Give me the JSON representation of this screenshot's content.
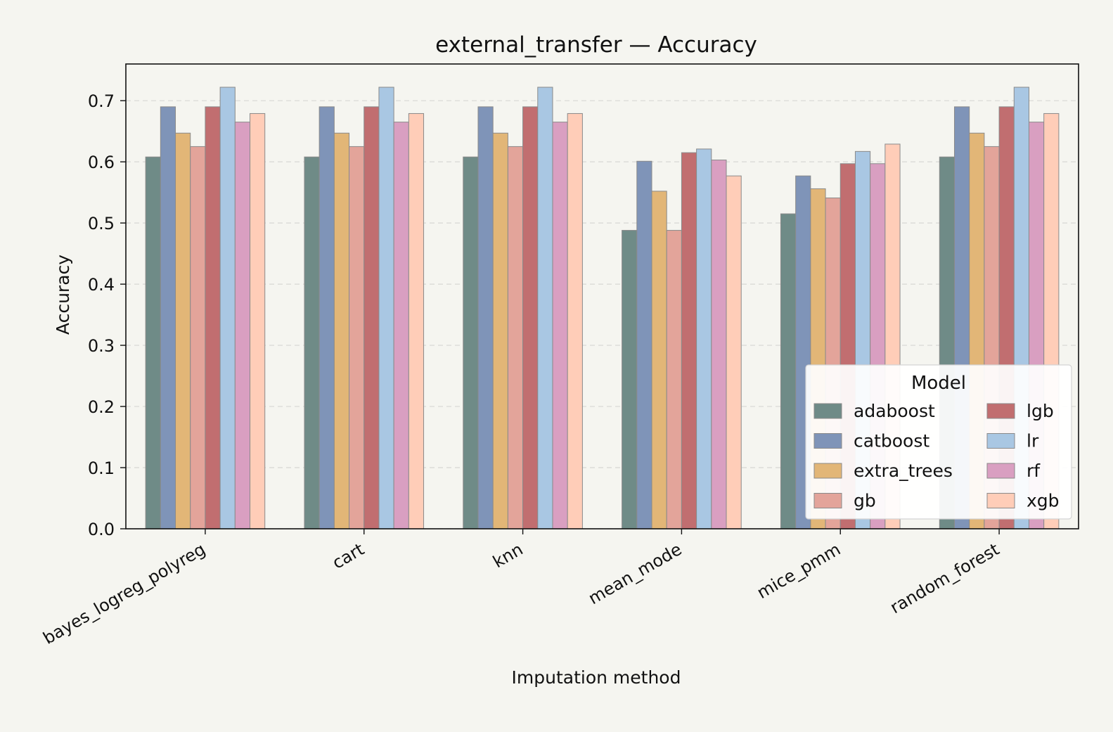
{
  "chart_data": {
    "type": "bar",
    "title": "external_transfer — Accuracy",
    "xlabel": "Imputation method",
    "ylabel": "Accuracy",
    "ylim": [
      0,
      0.76
    ],
    "yticks": [
      0.0,
      0.1,
      0.2,
      0.3,
      0.4,
      0.5,
      0.6,
      0.7
    ],
    "grid": "horizontal dashed",
    "legend": {
      "title": "Model",
      "placement": "lower-right",
      "columns": 2
    },
    "categories": [
      "bayes_logreg_polyreg",
      "cart",
      "knn",
      "mean_mode",
      "mice_pmm",
      "random_forest"
    ],
    "series": [
      {
        "name": "adaboost",
        "color": "#6f8b87",
        "values": [
          0.608,
          0.608,
          0.608,
          0.488,
          0.515,
          0.608
        ]
      },
      {
        "name": "catboost",
        "color": "#7f94b8",
        "values": [
          0.69,
          0.69,
          0.69,
          0.601,
          0.577,
          0.69
        ]
      },
      {
        "name": "extra_trees",
        "color": "#e2b677",
        "values": [
          0.647,
          0.647,
          0.647,
          0.552,
          0.556,
          0.647
        ]
      },
      {
        "name": "gb",
        "color": "#e3a49a",
        "values": [
          0.625,
          0.625,
          0.625,
          0.488,
          0.541,
          0.625
        ]
      },
      {
        "name": "lgb",
        "color": "#c16e70",
        "values": [
          0.69,
          0.69,
          0.69,
          0.615,
          0.597,
          0.69
        ]
      },
      {
        "name": "lr",
        "color": "#a9c7e3",
        "values": [
          0.722,
          0.722,
          0.722,
          0.621,
          0.617,
          0.722
        ]
      },
      {
        "name": "rf",
        "color": "#d99fc1",
        "values": [
          0.665,
          0.665,
          0.665,
          0.603,
          0.597,
          0.665
        ]
      },
      {
        "name": "xgb",
        "color": "#ffcdb8",
        "values": [
          0.679,
          0.679,
          0.679,
          0.577,
          0.629,
          0.679
        ]
      }
    ]
  }
}
